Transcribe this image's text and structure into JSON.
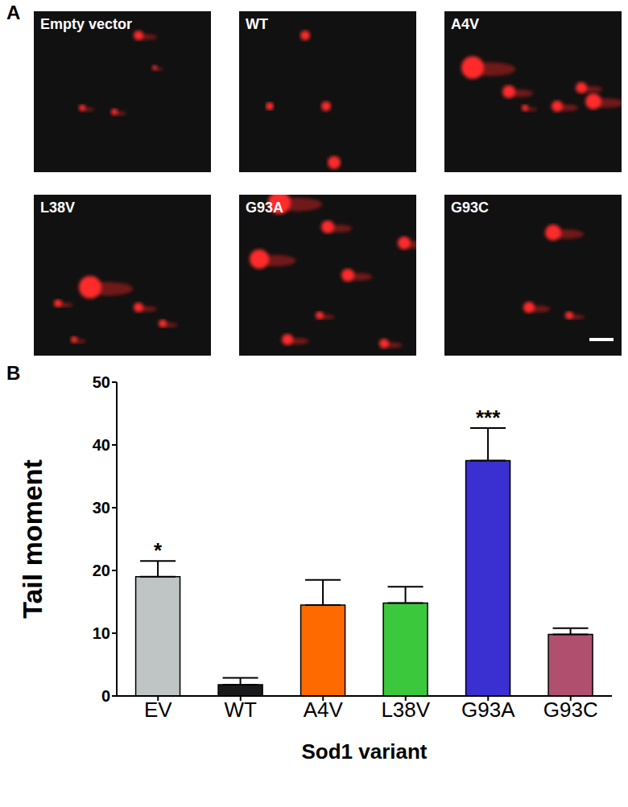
{
  "panel_a": {
    "label": "A",
    "images": [
      "Empty vector",
      "WT",
      "A4V",
      "L38V",
      "G93A",
      "G93C"
    ]
  },
  "chart_data": {
    "type": "bar",
    "title": "B",
    "x_label": "Sod1 variant",
    "y_label": "Tail moment",
    "categories": [
      "EV",
      "WT",
      "A4V",
      "L38V",
      "G93A",
      "G93C"
    ],
    "values": [
      19,
      1.8,
      14.5,
      14.8,
      37.5,
      9.8
    ],
    "errors": [
      2.5,
      1.1,
      4,
      2.6,
      5.2,
      1
    ],
    "annotations": [
      "*",
      null,
      null,
      null,
      "***",
      null
    ],
    "colors": [
      "#bfc5c5",
      "#1a1a1a",
      "#ff6a00",
      "#3cc83c",
      "#3a2fd0",
      "#b0506e"
    ],
    "ylim": [
      0,
      50
    ],
    "yticks": [
      0,
      10,
      20,
      30,
      40,
      50
    ],
    "grid": false
  }
}
